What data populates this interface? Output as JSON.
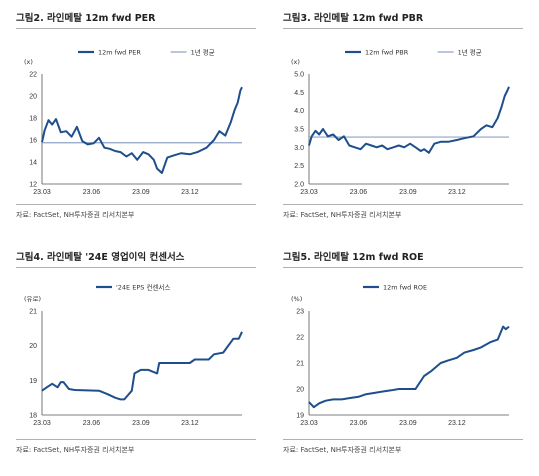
{
  "panels": [
    {
      "id": "fig2",
      "title": "그림2. 라인메탈 12m fwd PER",
      "source": "자료: FactSet, NH투자증권 리서치본부",
      "unit": "(x)",
      "legend": [
        "12m fwd PER",
        "1년 평균"
      ],
      "x_labels": [
        "23.03",
        "23.06",
        "23.09",
        "23.12"
      ],
      "y_ticks": [
        "12",
        "14",
        "16",
        "18",
        "20",
        "22"
      ],
      "series_color": "#1f4e8c",
      "avg_color": "#8fa3c8"
    },
    {
      "id": "fig3",
      "title": "그림3. 라인메탈 12m fwd PBR",
      "source": "자료: FactSet, NH투자증권 리서치본부",
      "unit": "(x)",
      "legend": [
        "12m fwd PBR",
        "1년 평균"
      ],
      "x_labels": [
        "23.03",
        "23.06",
        "23.09",
        "23.12"
      ],
      "y_ticks": [
        "2.0",
        "2.5",
        "3.0",
        "3.5",
        "4.0",
        "4.5",
        "5.0"
      ],
      "series_color": "#1f4e8c",
      "avg_color": "#8fa3c8"
    },
    {
      "id": "fig4",
      "title": "그림4. 라인메탈 '24E 영업이익 컨센서스",
      "source": "자료: FactSet, NH투자증권 리서치본부",
      "unit": "(유로)",
      "legend": [
        "'24E EPS 컨센서스"
      ],
      "x_labels": [
        "23.03",
        "23.06",
        "23.09",
        "23.12"
      ],
      "y_ticks": [
        "18",
        "19",
        "20",
        "21"
      ],
      "series_color": "#1f4e8c"
    },
    {
      "id": "fig5",
      "title": "그림5. 라인메탈 12m fwd ROE",
      "source": "자료: FactSet, NH투자증권 리서치본부",
      "unit": "(%)",
      "legend": [
        "12m fwd ROE"
      ],
      "x_labels": [
        "23.03",
        "23.06",
        "23.09",
        "23.12"
      ],
      "y_ticks": [
        "19",
        "20",
        "21",
        "22",
        "23"
      ],
      "series_color": "#1f4e8c"
    }
  ],
  "chart_data": [
    {
      "type": "line",
      "title": "그림2. 라인메탈 12m fwd PER",
      "ylabel": "(x)",
      "ylim": [
        12,
        22
      ],
      "x_tick_labels": [
        "23.03",
        "23.06",
        "23.09",
        "23.12"
      ],
      "xlim": [
        "2023-03-01",
        "2024-03-07"
      ],
      "series": [
        {
          "name": "12m fwd PER",
          "x": [
            "2023-03-01",
            "2023-03-06",
            "2023-03-13",
            "2023-03-20",
            "2023-03-27",
            "2023-04-05",
            "2023-04-15",
            "2023-04-25",
            "2023-05-05",
            "2023-05-15",
            "2023-05-25",
            "2023-06-05",
            "2023-06-15",
            "2023-06-25",
            "2023-07-05",
            "2023-07-15",
            "2023-07-25",
            "2023-08-05",
            "2023-08-15",
            "2023-08-25",
            "2023-09-05",
            "2023-09-15",
            "2023-09-25",
            "2023-10-01",
            "2023-10-10",
            "2023-10-20",
            "2023-11-01",
            "2023-11-15",
            "2023-12-01",
            "2023-12-15",
            "2024-01-01",
            "2024-01-15",
            "2024-01-25",
            "2024-02-05",
            "2024-02-15",
            "2024-02-22",
            "2024-02-28",
            "2024-03-04",
            "2024-03-07"
          ],
          "y": [
            15.8,
            16.9,
            17.8,
            17.4,
            17.9,
            16.7,
            16.8,
            16.3,
            17.2,
            15.9,
            15.6,
            15.7,
            16.2,
            15.3,
            15.2,
            15.0,
            14.9,
            14.5,
            14.8,
            14.2,
            14.9,
            14.7,
            14.2,
            13.4,
            13.0,
            14.4,
            14.6,
            14.8,
            14.7,
            14.9,
            15.3,
            16.0,
            16.8,
            16.4,
            17.6,
            18.7,
            19.4,
            20.5,
            20.8
          ]
        },
        {
          "name": "1년 평균",
          "value": 15.75
        }
      ]
    },
    {
      "type": "line",
      "title": "그림3. 라인메탈 12m fwd PBR",
      "ylabel": "(x)",
      "ylim": [
        2.0,
        5.0
      ],
      "x_tick_labels": [
        "23.03",
        "23.06",
        "23.09",
        "23.12"
      ],
      "xlim": [
        "2023-03-01",
        "2024-03-07"
      ],
      "series": [
        {
          "name": "12m fwd PBR",
          "x": [
            "2023-03-01",
            "2023-03-06",
            "2023-03-13",
            "2023-03-20",
            "2023-03-27",
            "2023-04-05",
            "2023-04-15",
            "2023-04-25",
            "2023-05-05",
            "2023-05-15",
            "2023-05-25",
            "2023-06-05",
            "2023-06-15",
            "2023-06-25",
            "2023-07-05",
            "2023-07-15",
            "2023-07-25",
            "2023-08-05",
            "2023-08-15",
            "2023-08-25",
            "2023-09-05",
            "2023-09-15",
            "2023-09-25",
            "2023-10-01",
            "2023-10-10",
            "2023-10-20",
            "2023-11-01",
            "2023-11-15",
            "2023-12-01",
            "2023-12-15",
            "2024-01-01",
            "2024-01-15",
            "2024-01-25",
            "2024-02-05",
            "2024-02-15",
            "2024-02-22",
            "2024-02-28",
            "2024-03-04",
            "2024-03-07"
          ],
          "y": [
            3.05,
            3.3,
            3.45,
            3.35,
            3.5,
            3.3,
            3.35,
            3.2,
            3.3,
            3.05,
            3.0,
            2.95,
            3.1,
            3.05,
            3.0,
            3.05,
            2.95,
            3.0,
            3.05,
            3.0,
            3.1,
            3.0,
            2.9,
            2.95,
            2.85,
            3.1,
            3.15,
            3.15,
            3.2,
            3.25,
            3.3,
            3.5,
            3.6,
            3.55,
            3.8,
            4.1,
            4.4,
            4.55,
            4.65
          ]
        },
        {
          "name": "1년 평균",
          "value": 3.28
        }
      ]
    },
    {
      "type": "line",
      "title": "그림4. 라인메탈 '24E 영업이익 컨센서스",
      "ylabel": "(유로)",
      "ylim": [
        18,
        21
      ],
      "x_tick_labels": [
        "23.03",
        "23.06",
        "23.09",
        "23.12"
      ],
      "xlim": [
        "2023-03-01",
        "2024-03-07"
      ],
      "series": [
        {
          "name": "'24E EPS 컨센서스",
          "x": [
            "2023-03-01",
            "2023-03-10",
            "2023-03-20",
            "2023-03-30",
            "2023-04-05",
            "2023-04-10",
            "2023-04-20",
            "2023-05-01",
            "2023-06-15",
            "2023-07-01",
            "2023-07-15",
            "2023-07-25",
            "2023-08-01",
            "2023-08-15",
            "2023-08-20",
            "2023-09-01",
            "2023-09-15",
            "2023-10-01",
            "2023-10-05",
            "2023-10-20",
            "2023-11-01",
            "2023-12-01",
            "2023-12-10",
            "2024-01-05",
            "2024-01-15",
            "2024-02-01",
            "2024-02-20",
            "2024-03-01",
            "2024-03-07"
          ],
          "y": [
            18.7,
            18.8,
            18.9,
            18.8,
            18.95,
            18.95,
            18.75,
            18.72,
            18.7,
            18.6,
            18.5,
            18.45,
            18.45,
            18.7,
            19.2,
            19.3,
            19.3,
            19.2,
            19.5,
            19.5,
            19.5,
            19.5,
            19.6,
            19.6,
            19.75,
            19.8,
            20.2,
            20.2,
            20.4
          ]
        }
      ]
    },
    {
      "type": "line",
      "title": "그림5. 라인메탈 12m fwd ROE",
      "ylabel": "(%)",
      "ylim": [
        19,
        23
      ],
      "x_tick_labels": [
        "23.03",
        "23.06",
        "23.09",
        "23.12"
      ],
      "xlim": [
        "2023-03-01",
        "2024-03-07"
      ],
      "series": [
        {
          "name": "12m fwd ROE",
          "x": [
            "2023-03-01",
            "2023-03-10",
            "2023-03-20",
            "2023-04-01",
            "2023-04-15",
            "2023-05-01",
            "2023-05-15",
            "2023-06-01",
            "2023-06-15",
            "2023-07-01",
            "2023-07-15",
            "2023-08-01",
            "2023-08-15",
            "2023-09-01",
            "2023-09-15",
            "2023-10-01",
            "2023-10-15",
            "2023-11-01",
            "2023-11-15",
            "2023-12-01",
            "2023-12-15",
            "2024-01-01",
            "2024-01-15",
            "2024-02-01",
            "2024-02-15",
            "2024-02-25",
            "2024-03-01",
            "2024-03-07"
          ],
          "y": [
            19.5,
            19.3,
            19.45,
            19.55,
            19.6,
            19.6,
            19.65,
            19.7,
            19.8,
            19.85,
            19.9,
            19.95,
            20.0,
            20.0,
            20.0,
            20.5,
            20.7,
            21.0,
            21.1,
            21.2,
            21.4,
            21.5,
            21.6,
            21.8,
            21.9,
            22.4,
            22.3,
            22.4
          ]
        }
      ]
    }
  ]
}
